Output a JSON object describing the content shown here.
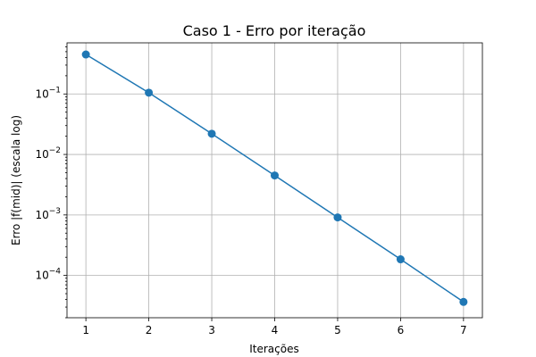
{
  "chart_data": {
    "type": "line",
    "title": "Caso 1 - Erro por iteração",
    "xlabel": "Iterações",
    "ylabel": "Erro |f(mid)| (escala log)",
    "yscale": "log",
    "grid": true,
    "color": "#1f77b4",
    "xlim": [
      0.7,
      7.3
    ],
    "ylim": [
      2e-05,
      0.7
    ],
    "x_ticks": [
      1,
      2,
      3,
      4,
      5,
      6,
      7
    ],
    "x_tick_labels": [
      "1",
      "2",
      "3",
      "4",
      "5",
      "6",
      "7"
    ],
    "y_ticks": [
      0.1,
      0.01,
      0.001,
      0.0001
    ],
    "y_tick_labels": [
      {
        "base": "10",
        "exp": "−1"
      },
      {
        "base": "10",
        "exp": "−2"
      },
      {
        "base": "10",
        "exp": "−3"
      },
      {
        "base": "10",
        "exp": "−4"
      }
    ],
    "series": [
      {
        "x": [
          1,
          2,
          3,
          4,
          5,
          6,
          7
        ],
        "values": [
          0.45,
          0.105,
          0.022,
          0.0045,
          0.00091,
          0.000185,
          3.65e-05
        ]
      }
    ]
  }
}
